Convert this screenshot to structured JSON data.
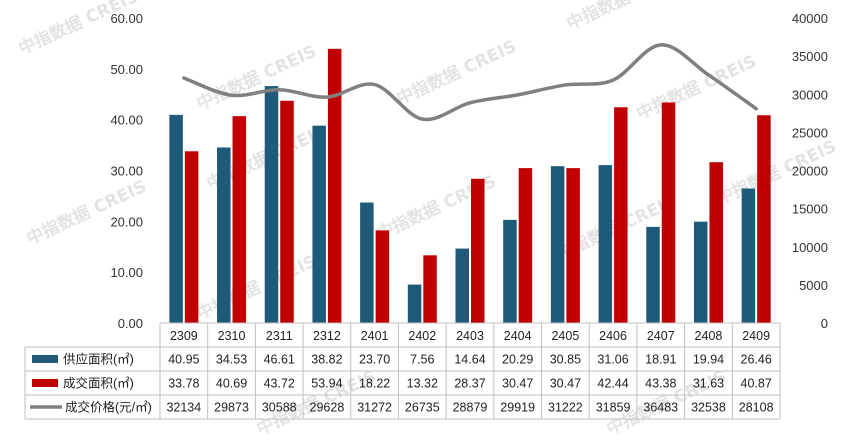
{
  "watermark": "中指数据 CREIS",
  "chart_data": {
    "type": "bar",
    "categories": [
      "2309",
      "2310",
      "2311",
      "2312",
      "2401",
      "2402",
      "2403",
      "2404",
      "2405",
      "2406",
      "2407",
      "2408",
      "2409"
    ],
    "series": [
      {
        "name": "供应面积(㎡)",
        "type": "bar",
        "axis": "left",
        "color": "#1f5b78",
        "values": [
          40.95,
          34.53,
          46.61,
          38.82,
          23.7,
          7.56,
          14.64,
          20.29,
          30.85,
          31.06,
          18.91,
          19.94,
          26.46
        ],
        "labels": [
          "40.95",
          "34.53",
          "46.61",
          "38.82",
          "23.70",
          "7.56",
          "14.64",
          "20.29",
          "30.85",
          "31.06",
          "18.91",
          "19.94",
          "26.46"
        ]
      },
      {
        "name": "成交面积(㎡)",
        "type": "bar",
        "axis": "left",
        "color": "#c00000",
        "values": [
          33.78,
          40.69,
          43.72,
          53.94,
          18.22,
          13.32,
          28.37,
          30.47,
          30.47,
          42.44,
          43.38,
          31.63,
          40.87
        ],
        "labels": [
          "33.78",
          "40.69",
          "43.72",
          "53.94",
          "18.22",
          "13.32",
          "28.37",
          "30.47",
          "30.47",
          "42.44",
          "43.38",
          "31.63",
          "40.87"
        ]
      },
      {
        "name": "成交价格(元/㎡)",
        "type": "line",
        "axis": "right",
        "color": "#808080",
        "values": [
          32134,
          29873,
          30588,
          29628,
          31272,
          26735,
          28879,
          29919,
          31222,
          31859,
          36483,
          32538,
          28108
        ],
        "labels": [
          "32134",
          "29873",
          "30588",
          "29628",
          "31272",
          "26735",
          "28879",
          "29919",
          "31222",
          "31859",
          "36483",
          "32538",
          "28108"
        ]
      }
    ],
    "y_left": {
      "ticks": [
        "0.00",
        "10.00",
        "20.00",
        "30.00",
        "40.00",
        "50.00",
        "60.00"
      ],
      "ylim": [
        0,
        60
      ]
    },
    "y_right": {
      "ticks": [
        "0",
        "5000",
        "10000",
        "15000",
        "20000",
        "25000",
        "30000",
        "35000",
        "40000"
      ],
      "ylim": [
        0,
        40000
      ]
    },
    "legend": "data-table",
    "grid": false
  }
}
